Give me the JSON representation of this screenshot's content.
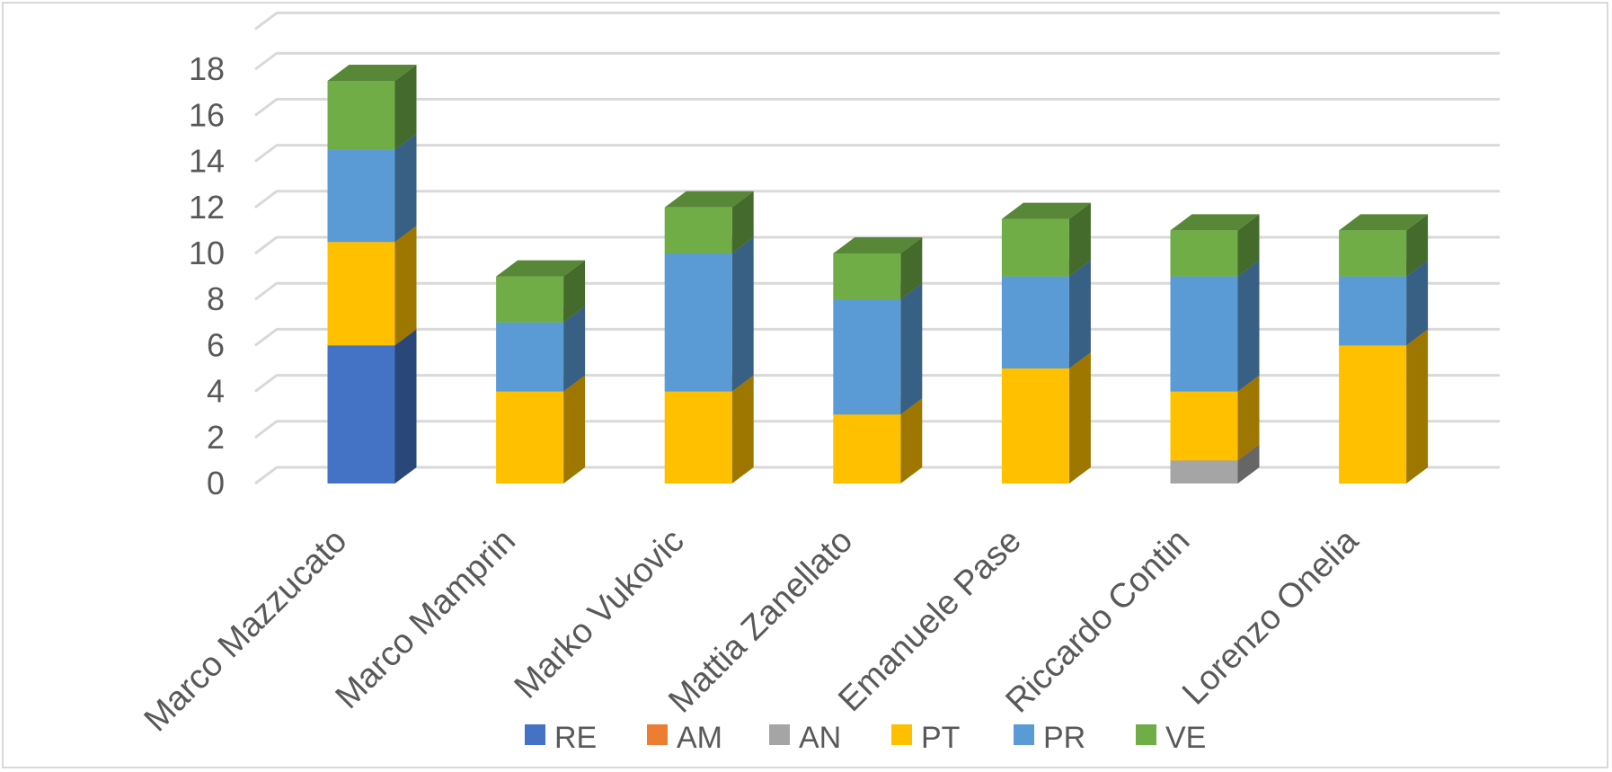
{
  "chart_data": {
    "type": "bar",
    "stacked": true,
    "style": "3d-column",
    "categories": [
      "Marco Mazzucato",
      "Marco Mamprin",
      "Marko Vukovic",
      "Mattia Zanellato",
      "Emanuele Pase",
      "Riccardo Contin",
      "Lorenzo Onelia"
    ],
    "series": [
      {
        "name": "RE",
        "color": "#4472c4",
        "values": [
          6,
          0,
          0,
          0,
          0,
          0,
          0
        ]
      },
      {
        "name": "AM",
        "color": "#ed7d31",
        "values": [
          0,
          0,
          0,
          0,
          0,
          0,
          0
        ]
      },
      {
        "name": "AN",
        "color": "#a5a5a5",
        "values": [
          0,
          0,
          0,
          0,
          0,
          1,
          0
        ]
      },
      {
        "name": "PT",
        "color": "#ffc000",
        "values": [
          4.5,
          4,
          4,
          3,
          5,
          3,
          6
        ]
      },
      {
        "name": "PR",
        "color": "#5b9bd5",
        "values": [
          4,
          3,
          6,
          5,
          4,
          5,
          3
        ]
      },
      {
        "name": "VE",
        "color": "#70ad47",
        "values": [
          3,
          2,
          2,
          2,
          2.5,
          2,
          2
        ]
      }
    ],
    "ylim": [
      0,
      18
    ],
    "yticks": [
      "0",
      "2",
      "4",
      "6",
      "8",
      "10",
      "12",
      "14",
      "16",
      "18"
    ],
    "title": "",
    "xlabel": "",
    "ylabel": "",
    "grid": true,
    "legend": "bottom"
  }
}
